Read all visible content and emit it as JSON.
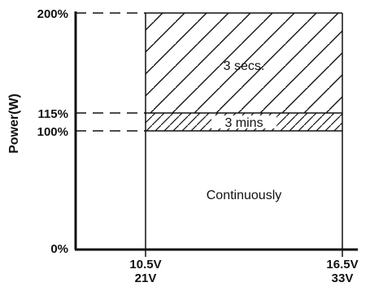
{
  "chart_data": {
    "type": "area",
    "ylabel": "Power(W)",
    "y_ticks": [
      "200%",
      "115%",
      "100%",
      "0%"
    ],
    "x_ticks": [
      {
        "line1": "10.5V",
        "line2": "21V"
      },
      {
        "line1": "16.5V",
        "line2": "33V"
      }
    ],
    "x_range_values": [
      10.5,
      16.5
    ],
    "regions": [
      {
        "label": "3 secs.",
        "y_from": 115,
        "y_to": 200,
        "hatched": true
      },
      {
        "label": "3 mins",
        "y_from": 100,
        "y_to": 115,
        "hatched": true
      },
      {
        "label": "Continuously",
        "y_from": 0,
        "y_to": 100,
        "hatched": false
      }
    ],
    "ylim": [
      0,
      200
    ]
  }
}
